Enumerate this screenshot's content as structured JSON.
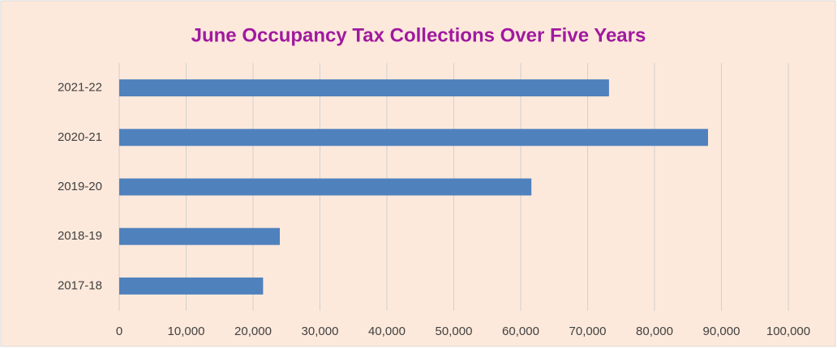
{
  "chart_data": {
    "type": "bar",
    "orientation": "horizontal",
    "title": "June Occupancy Tax Collections Over Five Years",
    "categories": [
      "2021-22",
      "2020-21",
      "2019-20",
      "2018-19",
      "2017-18"
    ],
    "values": [
      73200,
      88000,
      61600,
      24000,
      21500
    ],
    "color": "#4f81bd",
    "xlim": [
      0,
      100000
    ],
    "xticks": [
      0,
      {
        "value": 10000,
        "label": "10,000"
      },
      {
        "value": 20000,
        "label": "20,000"
      },
      {
        "value": 30000,
        "label": "30,000"
      },
      {
        "value": 40000,
        "label": "40,000"
      },
      {
        "value": 50000,
        "label": "50,000"
      },
      {
        "value": 60000,
        "label": "60,000"
      },
      {
        "value": 70000,
        "label": "70,000"
      },
      {
        "value": 80000,
        "label": "80,000"
      },
      {
        "value": 90000,
        "label": "90,000"
      },
      {
        "value": 100000,
        "label": "100,000"
      }
    ],
    "grid": true
  }
}
